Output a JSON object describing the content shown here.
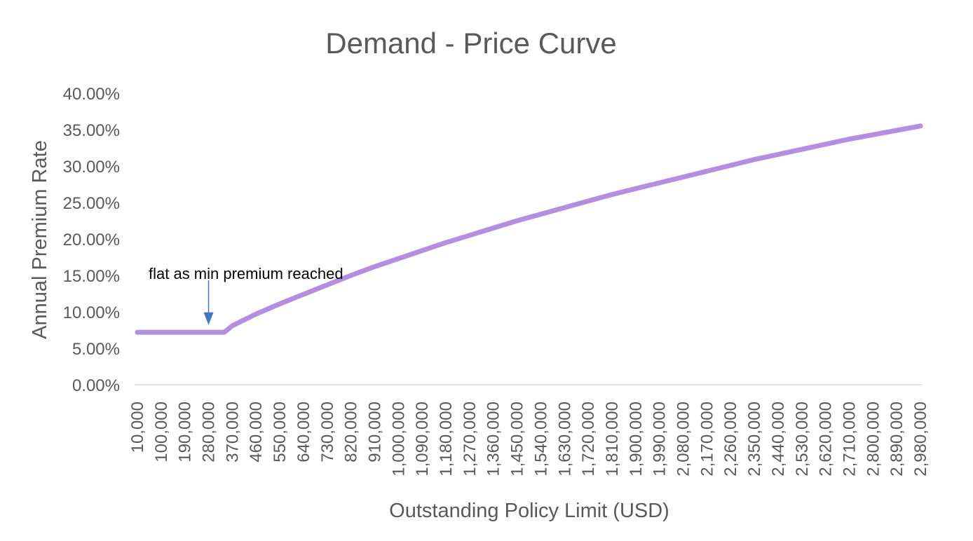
{
  "chart_data": {
    "type": "line",
    "title": "Demand - Price Curve",
    "xlabel": "Outstanding Policy Limit (USD)",
    "ylabel": "Annual Premium Rate",
    "x_tick_labels": [
      "10,000",
      "100,000",
      "190,000",
      "280,000",
      "370,000",
      "460,000",
      "550,000",
      "640,000",
      "730,000",
      "820,000",
      "910,000",
      "1,000,000",
      "1,090,000",
      "1,180,000",
      "1,270,000",
      "1,360,000",
      "1,450,000",
      "1,540,000",
      "1,630,000",
      "1,720,000",
      "1,810,000",
      "1,900,000",
      "1,990,000",
      "2,080,000",
      "2,170,000",
      "2,260,000",
      "2,350,000",
      "2,440,000",
      "2,530,000",
      "2,620,000",
      "2,710,000",
      "2,800,000",
      "2,890,000",
      "2,980,000"
    ],
    "y_tick_labels": [
      "0.00%",
      "5.00%",
      "10.00%",
      "15.00%",
      "20.00%",
      "25.00%",
      "30.00%",
      "35.00%",
      "40.00%"
    ],
    "xlim": [
      10000,
      2980000
    ],
    "ylim": [
      0,
      0.4
    ],
    "grid": false,
    "legend": "none",
    "series": [
      {
        "color": "#b48fdf",
        "x": [
          10000,
          100000,
          190000,
          280000,
          340000,
          370000,
          460000,
          550000,
          640000,
          730000,
          820000,
          910000,
          1000000,
          1090000,
          1180000,
          1270000,
          1360000,
          1450000,
          1540000,
          1630000,
          1720000,
          1810000,
          1900000,
          1990000,
          2080000,
          2170000,
          2260000,
          2350000,
          2440000,
          2530000,
          2620000,
          2710000,
          2800000,
          2890000,
          2980000
        ],
        "y": [
          0.072,
          0.072,
          0.072,
          0.072,
          0.072,
          0.081,
          0.097,
          0.111,
          0.124,
          0.137,
          0.15,
          0.162,
          0.173,
          0.184,
          0.195,
          0.205,
          0.215,
          0.225,
          0.234,
          0.243,
          0.252,
          0.261,
          0.269,
          0.277,
          0.285,
          0.293,
          0.301,
          0.309,
          0.316,
          0.323,
          0.33,
          0.337,
          0.343,
          0.349,
          0.355
        ]
      }
    ],
    "annotations": [
      {
        "text": "flat as min premium reached",
        "x": 280000,
        "y": 0.082,
        "arrow": true,
        "arrow_color": "#4472c4"
      }
    ]
  }
}
